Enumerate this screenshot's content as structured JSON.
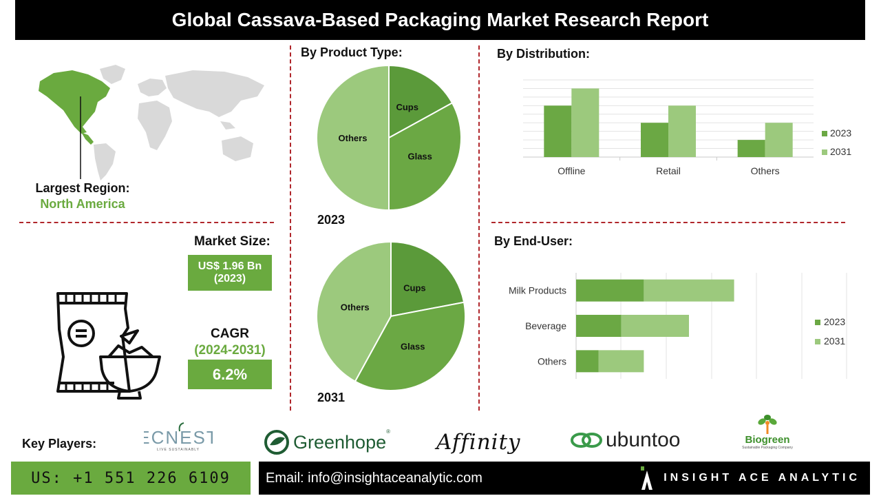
{
  "title": "Global Cassava-Based Packaging Market Research Report",
  "region": {
    "label": "Largest Region:",
    "value": "North America"
  },
  "market_size": {
    "label": "Market Size:",
    "value": "US$ 1.96 Bn",
    "year": "(2023)"
  },
  "cagr": {
    "label": "CAGR",
    "period": "(2024-2031)",
    "value": "6.2%"
  },
  "sections": {
    "product_type": "By Product Type:",
    "distribution": "By  Distribution:",
    "end_user": "By End-User:",
    "key_players": "Key Players:"
  },
  "colors": {
    "dark_green": "#5b9a3a",
    "mid_green": "#6ba844",
    "light_green": "#9cc97d",
    "accent": "#6aaa3f",
    "divider": "#b0262b"
  },
  "chart_data": [
    {
      "type": "pie",
      "label": "2023",
      "slices": [
        {
          "name": "Cups",
          "value": 17
        },
        {
          "name": "Glass",
          "value": 33
        },
        {
          "name": "Others",
          "value": 50
        }
      ]
    },
    {
      "type": "pie",
      "label": "2031",
      "slices": [
        {
          "name": "Cups",
          "value": 22
        },
        {
          "name": "Glass",
          "value": 36
        },
        {
          "name": "Others",
          "value": 42
        }
      ]
    },
    {
      "type": "bar",
      "categories": [
        "Offline",
        "Retail",
        "Others"
      ],
      "series": [
        {
          "name": "2023",
          "values": [
            3,
            2,
            1
          ]
        },
        {
          "name": "2031",
          "values": [
            4,
            3,
            2
          ]
        }
      ],
      "ylim": [
        0,
        4.5
      ],
      "legend": "right",
      "grid": true
    },
    {
      "type": "bar",
      "orientation": "horizontal",
      "stacked": true,
      "categories": [
        "Milk Products",
        "Beverage",
        "Others"
      ],
      "series": [
        {
          "name": "2023",
          "values": [
            3,
            2,
            1
          ]
        },
        {
          "name": "2031",
          "values": [
            4,
            3,
            2
          ]
        }
      ],
      "legend": "right",
      "grid": true
    }
  ],
  "players": {
    "econest": {
      "name": "ECNEST",
      "tagline": "LIVE SUSTAINABLY"
    },
    "greenhope": {
      "name": "Greenhope"
    },
    "affinity": {
      "name": "Affinity"
    },
    "ubuntoo": {
      "name": "ubuntoo"
    },
    "biogreen": {
      "name": "Biogreen",
      "tagline": "Sustainable Packaging Company"
    }
  },
  "footer": {
    "phone": "US: +1 551 226 6109",
    "email": "Email: info@insightaceanalytic.com",
    "brand": "INSIGHT ACE ANALYTIC"
  }
}
